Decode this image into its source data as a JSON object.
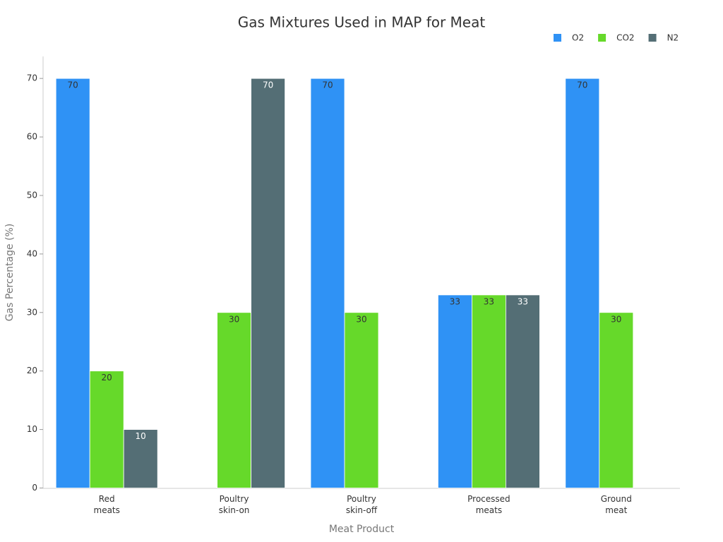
{
  "chart_data": {
    "type": "bar",
    "title": "Gas Mixtures Used in MAP for Meat",
    "x_label": "Meat Product",
    "y_label": "Gas Percentage (%)",
    "categories": [
      "Red\nmeats",
      "Poultry\nskin-on",
      "Poultry\nskin-off",
      "Processed\nmeats",
      "Ground\nmeat"
    ],
    "series": [
      {
        "name": "O2",
        "color": "#2f92f5",
        "values": [
          70,
          null,
          70,
          33,
          70
        ]
      },
      {
        "name": "CO2",
        "color": "#66d92a",
        "values": [
          20,
          30,
          30,
          33,
          30
        ]
      },
      {
        "name": "N2",
        "color": "#546e75",
        "values": [
          10,
          70,
          null,
          33,
          null
        ]
      }
    ],
    "ylim": [
      0,
      74
    ],
    "yticks": [
      0,
      10,
      20,
      30,
      40,
      50,
      60,
      70
    ],
    "legend": "top-right"
  }
}
